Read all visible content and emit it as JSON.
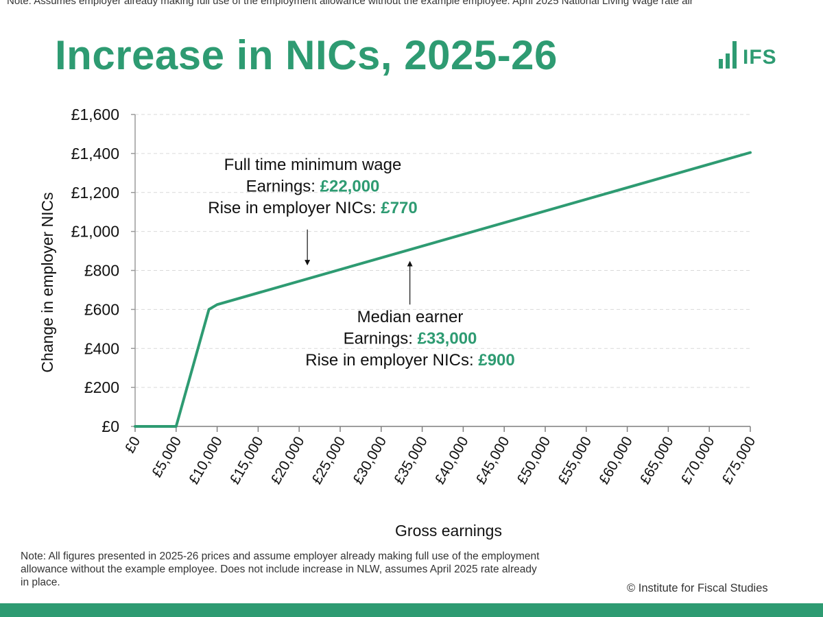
{
  "slide": {
    "top_note": "Note: Assumes employer already making full use of the employment allowance without the example employee. April 2025 National Living Wage rate alr",
    "title": "Increase in NICs, 2025-26",
    "logo_text": "IFS",
    "footnote": "Note: All figures presented in 2025-26 prices and assume employer already making full use of the employment allowance without the example employee. Does not include increase in NLW, assumes April 2025 rate already in place.",
    "copyright": "© Institute for Fiscal Studies",
    "colors": {
      "accent": "#2e9b72",
      "footer": "#2e9b72",
      "text": "#111111"
    }
  },
  "chart_data": {
    "type": "line",
    "xlabel": "Gross earnings",
    "ylabel": "Change in employer NICs",
    "xlim": [
      0,
      75000
    ],
    "ylim": [
      0,
      1600
    ],
    "x_ticks": [
      0,
      5000,
      10000,
      15000,
      20000,
      25000,
      30000,
      35000,
      40000,
      45000,
      50000,
      55000,
      60000,
      65000,
      70000,
      75000
    ],
    "x_tick_labels": [
      "£0",
      "£5,000",
      "£10,000",
      "£15,000",
      "£20,000",
      "£25,000",
      "£30,000",
      "£35,000",
      "£40,000",
      "£45,000",
      "£50,000",
      "£55,000",
      "£60,000",
      "£65,000",
      "£70,000",
      "£75,000"
    ],
    "y_ticks": [
      0,
      200,
      400,
      600,
      800,
      1000,
      1200,
      1400,
      1600
    ],
    "y_tick_labels": [
      "£0",
      "£200",
      "£400",
      "£600",
      "£800",
      "£1,000",
      "£1,200",
      "£1,400",
      "£1,600"
    ],
    "grid": true,
    "series": [
      {
        "color": "#2e9b72",
        "x": [
          0,
          5000,
          9000,
          10000,
          75000
        ],
        "y": [
          0,
          0,
          600,
          625,
          1405
        ]
      }
    ],
    "annotations": [
      {
        "lines": [
          {
            "text": "Full time minimum wage"
          },
          {
            "text": "Earnings: ",
            "value": "£22,000"
          },
          {
            "text": "Rise in employer NICs: ",
            "value": "£770"
          }
        ],
        "arrow_x": 21000,
        "arrow_from_y": 1010,
        "arrow_to_y": 840
      },
      {
        "lines": [
          {
            "text": "Median earner"
          },
          {
            "text": "Earnings: ",
            "value": "£33,000"
          },
          {
            "text": "Rise in employer NICs: ",
            "value": "£900"
          }
        ],
        "arrow_x": 33500,
        "arrow_from_y": 625,
        "arrow_to_y": 835
      }
    ]
  }
}
